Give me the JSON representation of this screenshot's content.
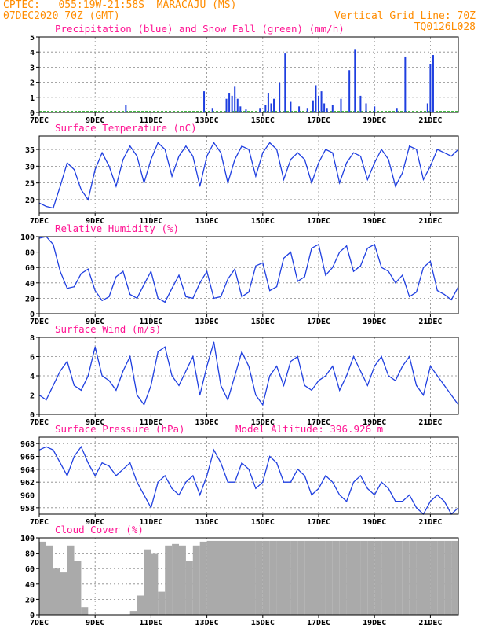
{
  "header": {
    "left_line1": "CPTEC:   055:19W-21:58S  MARACAJU (MS)",
    "left_line2": "07DEC2020 70Z (GMT)",
    "right_line1": "Vertical Grid Line: 70Z",
    "right_line2": "TQ0126L028"
  },
  "colors": {
    "header": "#ff8c00",
    "title": "#ff1493",
    "series": "#1f3fe0",
    "snow": "#00a000",
    "cloud": "#aaaaaa"
  },
  "x_ticks": [
    "7DEC",
    "9DEC",
    "11DEC",
    "13DEC",
    "15DEC",
    "17DEC",
    "19DEC",
    "21DEC"
  ],
  "x_days": [
    7,
    9,
    11,
    13,
    15,
    17,
    19,
    21
  ],
  "x_range": [
    7,
    22
  ],
  "chart_data": [
    {
      "type": "bar",
      "id": "precip",
      "title": "Precipitation (blue) and Snow Fall (green) (mm/h)",
      "ylim": [
        0,
        5
      ],
      "yticks": [
        0,
        1,
        2,
        3,
        4,
        5
      ],
      "x": [
        10.1,
        12.9,
        13.2,
        13.7,
        13.8,
        13.9,
        14.0,
        14.1,
        14.2,
        14.4,
        14.9,
        15.1,
        15.2,
        15.3,
        15.4,
        15.6,
        15.8,
        16.0,
        16.3,
        16.6,
        16.8,
        16.9,
        17.0,
        17.1,
        17.2,
        17.3,
        17.5,
        17.8,
        18.1,
        18.3,
        18.5,
        18.7,
        19.0,
        19.8,
        20.1,
        20.9,
        21.0,
        21.1
      ],
      "values": [
        0.5,
        1.4,
        0.3,
        0.9,
        1.3,
        1.1,
        1.7,
        0.9,
        0.4,
        0.2,
        0.3,
        0.5,
        1.3,
        0.6,
        0.9,
        2.0,
        3.9,
        0.7,
        0.4,
        0.3,
        0.8,
        1.8,
        1.1,
        1.4,
        0.6,
        0.3,
        0.5,
        0.9,
        2.8,
        4.2,
        1.1,
        0.6,
        0.4,
        0.3,
        3.7,
        0.6,
        3.2,
        3.8
      ],
      "snow": 0
    },
    {
      "type": "line",
      "id": "temp",
      "title": "Surface Temperature (nC)",
      "ylim": [
        16,
        39
      ],
      "yticks": [
        20,
        25,
        30,
        35
      ],
      "x": [
        7,
        7.25,
        7.5,
        7.75,
        8,
        8.25,
        8.5,
        8.75,
        9,
        9.25,
        9.5,
        9.75,
        10,
        10.25,
        10.5,
        10.75,
        11,
        11.25,
        11.5,
        11.75,
        12,
        12.25,
        12.5,
        12.75,
        13,
        13.25,
        13.5,
        13.75,
        14,
        14.25,
        14.5,
        14.75,
        15,
        15.25,
        15.5,
        15.75,
        16,
        16.25,
        16.5,
        16.75,
        17,
        17.25,
        17.5,
        17.75,
        18,
        18.25,
        18.5,
        18.75,
        19,
        19.25,
        19.5,
        19.75,
        20,
        20.25,
        20.5,
        20.75,
        21,
        21.25,
        21.5,
        21.75,
        22
      ],
      "values": [
        19,
        18,
        17.5,
        24,
        31,
        29,
        23,
        20,
        29,
        34,
        30,
        24,
        32,
        36,
        33,
        25,
        32,
        37,
        35,
        27,
        33,
        36,
        33,
        24,
        33,
        37,
        34,
        25,
        32,
        36,
        35,
        27,
        34,
        37,
        35,
        26,
        32,
        34,
        32,
        25,
        31,
        35,
        34,
        25,
        31,
        34,
        33,
        26,
        31,
        35,
        32,
        24,
        28,
        36,
        35,
        26,
        30,
        35,
        34,
        33,
        35
      ]
    },
    {
      "type": "line",
      "id": "rh",
      "title": "Relative Humidity (%)",
      "ylim": [
        0,
        100
      ],
      "yticks": [
        0,
        20,
        40,
        60,
        80,
        100
      ],
      "x": [
        7,
        7.25,
        7.5,
        7.75,
        8,
        8.25,
        8.5,
        8.75,
        9,
        9.25,
        9.5,
        9.75,
        10,
        10.25,
        10.5,
        10.75,
        11,
        11.25,
        11.5,
        11.75,
        12,
        12.25,
        12.5,
        12.75,
        13,
        13.25,
        13.5,
        13.75,
        14,
        14.25,
        14.5,
        14.75,
        15,
        15.25,
        15.5,
        15.75,
        16,
        16.25,
        16.5,
        16.75,
        17,
        17.25,
        17.5,
        17.75,
        18,
        18.25,
        18.5,
        18.75,
        19,
        19.25,
        19.5,
        19.75,
        20,
        20.25,
        20.5,
        20.75,
        21,
        21.25,
        21.5,
        21.75,
        22
      ],
      "values": [
        98,
        100,
        90,
        55,
        33,
        35,
        52,
        58,
        30,
        17,
        22,
        48,
        55,
        25,
        20,
        38,
        55,
        20,
        15,
        33,
        50,
        22,
        20,
        40,
        55,
        20,
        22,
        45,
        58,
        22,
        28,
        62,
        66,
        30,
        35,
        72,
        80,
        42,
        48,
        85,
        90,
        50,
        60,
        80,
        88,
        55,
        62,
        85,
        90,
        60,
        55,
        40,
        50,
        22,
        28,
        60,
        68,
        30,
        25,
        18,
        35
      ]
    },
    {
      "type": "line",
      "id": "wind",
      "title": "Surface Wind (m/s)",
      "ylim": [
        0,
        8
      ],
      "yticks": [
        0,
        2,
        4,
        6,
        8
      ],
      "x": [
        7,
        7.25,
        7.5,
        7.75,
        8,
        8.25,
        8.5,
        8.75,
        9,
        9.25,
        9.5,
        9.75,
        10,
        10.25,
        10.5,
        10.75,
        11,
        11.25,
        11.5,
        11.75,
        12,
        12.25,
        12.5,
        12.75,
        13,
        13.25,
        13.5,
        13.75,
        14,
        14.25,
        14.5,
        14.75,
        15,
        15.25,
        15.5,
        15.75,
        16,
        16.25,
        16.5,
        16.75,
        17,
        17.25,
        17.5,
        17.75,
        18,
        18.25,
        18.5,
        18.75,
        19,
        19.25,
        19.5,
        19.75,
        20,
        20.25,
        20.5,
        20.75,
        21,
        21.25,
        21.5,
        21.75,
        22
      ],
      "values": [
        2,
        1.5,
        3,
        4.5,
        5.5,
        3,
        2.5,
        4,
        7,
        4,
        3.5,
        2.5,
        4.5,
        6,
        2,
        1,
        3,
        6.5,
        7,
        4,
        3,
        4.5,
        6,
        2,
        5,
        7.5,
        3,
        1.5,
        4,
        6.5,
        5,
        2,
        1,
        4,
        5,
        3,
        5.5,
        6,
        3,
        2.5,
        3.5,
        4,
        5,
        2.5,
        4,
        6,
        4.5,
        3,
        5,
        6,
        4,
        3.5,
        5,
        6,
        3,
        2,
        5,
        4,
        3,
        2,
        1
      ]
    },
    {
      "type": "line",
      "id": "pres",
      "title": "Surface Pressure (hPa)",
      "annotation": "Model Altitude: 396.926 m",
      "ylim": [
        957,
        969
      ],
      "yticks": [
        958,
        960,
        962,
        964,
        966,
        968
      ],
      "x": [
        7,
        7.25,
        7.5,
        7.75,
        8,
        8.25,
        8.5,
        8.75,
        9,
        9.25,
        9.5,
        9.75,
        10,
        10.25,
        10.5,
        10.75,
        11,
        11.25,
        11.5,
        11.75,
        12,
        12.25,
        12.5,
        12.75,
        13,
        13.25,
        13.5,
        13.75,
        14,
        14.25,
        14.5,
        14.75,
        15,
        15.25,
        15.5,
        15.75,
        16,
        16.25,
        16.5,
        16.75,
        17,
        17.25,
        17.5,
        17.75,
        18,
        18.25,
        18.5,
        18.75,
        19,
        19.25,
        19.5,
        19.75,
        20,
        20.25,
        20.5,
        20.75,
        21,
        21.25,
        21.5,
        21.75,
        22
      ],
      "values": [
        967,
        967.5,
        967,
        965,
        963,
        966,
        967.5,
        965,
        963,
        965,
        964.5,
        963,
        964,
        965,
        962,
        960,
        958,
        962,
        963,
        961,
        960,
        962,
        963,
        960,
        963,
        967,
        965,
        962,
        962,
        965,
        964,
        961,
        962,
        966,
        965,
        962,
        962,
        964,
        963,
        960,
        961,
        963,
        962,
        960,
        959,
        962,
        963,
        961,
        960,
        962,
        961,
        959,
        959,
        960,
        958,
        957,
        959,
        960,
        959,
        957,
        958
      ]
    },
    {
      "type": "bar",
      "id": "cloud",
      "title": "Cloud Cover (%)",
      "ylim": [
        0,
        100
      ],
      "yticks": [
        0,
        20,
        40,
        60,
        80,
        100
      ],
      "x": [
        7.25,
        7.5,
        7.75,
        8,
        8.25,
        8.5,
        8.75,
        9,
        9.25,
        9.5,
        9.75,
        10,
        10.25,
        10.5,
        10.75,
        11,
        11.25,
        11.5,
        11.75,
        12,
        12.25,
        12.5,
        12.75,
        13,
        13.25,
        13.5,
        13.75,
        14,
        14.25,
        14.5,
        14.75,
        15,
        15.25,
        15.5,
        15.75,
        16,
        16.25,
        16.5,
        16.75,
        17,
        17.25,
        17.5,
        17.75,
        18,
        18.25,
        18.5,
        18.75,
        19,
        19.25,
        19.5,
        19.75,
        20,
        20.25,
        20.5,
        20.75,
        21,
        21.25,
        21.5,
        21.75,
        22
      ],
      "values": [
        95,
        90,
        60,
        55,
        90,
        70,
        10,
        0,
        0,
        0,
        0,
        0,
        0,
        5,
        25,
        85,
        80,
        30,
        90,
        92,
        90,
        70,
        90,
        95,
        96,
        96,
        96,
        96,
        96,
        96,
        96,
        96,
        96,
        96,
        96,
        96,
        96,
        96,
        96,
        96,
        96,
        96,
        96,
        96,
        96,
        96,
        96,
        96,
        96,
        96,
        96,
        96,
        96,
        96,
        96,
        96,
        96,
        96,
        96,
        96
      ]
    }
  ]
}
